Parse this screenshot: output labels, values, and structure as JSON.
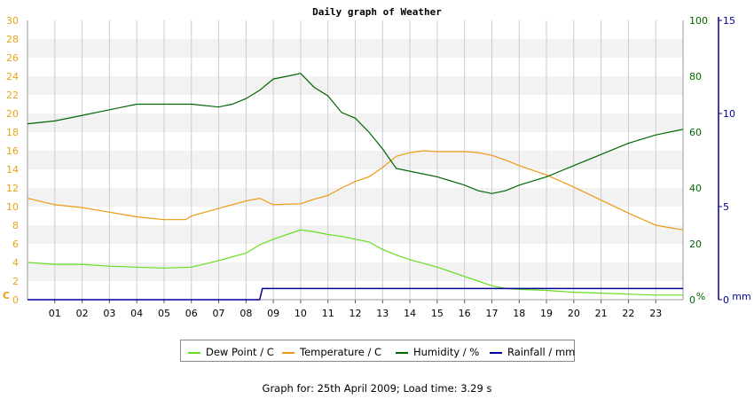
{
  "chart_data": {
    "type": "line",
    "title": "Daily graph of Weather",
    "footer": "Graph for: 25th April 2009; Load time: 3.29 s",
    "xlim": [
      0,
      24
    ],
    "x_ticks": [
      "01",
      "02",
      "03",
      "04",
      "05",
      "06",
      "07",
      "08",
      "09",
      "10",
      "11",
      "12",
      "13",
      "14",
      "15",
      "16",
      "17",
      "18",
      "19",
      "20",
      "21",
      "22",
      "23"
    ],
    "axes": {
      "left": {
        "label": "C",
        "min": 0,
        "max": 30,
        "ticks": [
          "0",
          "2",
          "4",
          "6",
          "8",
          "10",
          "12",
          "14",
          "16",
          "18",
          "20",
          "22",
          "24",
          "26",
          "28",
          "30"
        ],
        "color": "#e8a317"
      },
      "right1": {
        "label": "%",
        "min": 0,
        "max": 100,
        "ticks": [
          "0",
          "20",
          "40",
          "60",
          "80",
          "100"
        ],
        "color": "#006400"
      },
      "right2": {
        "label": "mm",
        "min": 0,
        "max": 15,
        "ticks": [
          "0",
          "5",
          "10",
          "15"
        ],
        "color": "#00008b"
      }
    },
    "series": [
      {
        "name": "Dew Point / C",
        "axis": "left",
        "color": "#66dd22",
        "points": [
          [
            0,
            4.0
          ],
          [
            1,
            3.8
          ],
          [
            2,
            3.8
          ],
          [
            3,
            3.6
          ],
          [
            4,
            3.5
          ],
          [
            5,
            3.4
          ],
          [
            6,
            3.5
          ],
          [
            7,
            4.2
          ],
          [
            8,
            5.0
          ],
          [
            8.5,
            5.9
          ],
          [
            9,
            6.5
          ],
          [
            9.5,
            7.0
          ],
          [
            10,
            7.5
          ],
          [
            10.5,
            7.3
          ],
          [
            11,
            7.0
          ],
          [
            11.5,
            6.8
          ],
          [
            12,
            6.5
          ],
          [
            12.5,
            6.2
          ],
          [
            13,
            5.4
          ],
          [
            13.5,
            4.8
          ],
          [
            14,
            4.3
          ],
          [
            14.5,
            3.9
          ],
          [
            15,
            3.5
          ],
          [
            15.5,
            3.0
          ],
          [
            16,
            2.5
          ],
          [
            16.5,
            2.0
          ],
          [
            17,
            1.5
          ],
          [
            17.5,
            1.2
          ],
          [
            18,
            1.1
          ],
          [
            19,
            1.0
          ],
          [
            20,
            0.8
          ],
          [
            21,
            0.7
          ],
          [
            22,
            0.6
          ],
          [
            23,
            0.5
          ],
          [
            24,
            0.5
          ]
        ]
      },
      {
        "name": "Temperature / C",
        "axis": "left",
        "color": "#ee9911",
        "points": [
          [
            0,
            10.9
          ],
          [
            1,
            10.2
          ],
          [
            2,
            9.9
          ],
          [
            3,
            9.4
          ],
          [
            4,
            8.9
          ],
          [
            5,
            8.6
          ],
          [
            5.8,
            8.6
          ],
          [
            6,
            9.0
          ],
          [
            7,
            9.8
          ],
          [
            8,
            10.6
          ],
          [
            8.5,
            10.9
          ],
          [
            9,
            10.2
          ],
          [
            10,
            10.3
          ],
          [
            10.5,
            10.8
          ],
          [
            11,
            11.2
          ],
          [
            11.5,
            12.0
          ],
          [
            12,
            12.7
          ],
          [
            12.5,
            13.2
          ],
          [
            13,
            14.2
          ],
          [
            13.5,
            15.4
          ],
          [
            14,
            15.8
          ],
          [
            14.5,
            16.0
          ],
          [
            15,
            15.9
          ],
          [
            16,
            15.9
          ],
          [
            16.5,
            15.8
          ],
          [
            17,
            15.5
          ],
          [
            17.5,
            15.0
          ],
          [
            18,
            14.4
          ],
          [
            19,
            13.4
          ],
          [
            20,
            12.1
          ],
          [
            21,
            10.7
          ],
          [
            22,
            9.3
          ],
          [
            23,
            8.0
          ],
          [
            24,
            7.5
          ]
        ]
      },
      {
        "name": "Humidity / %",
        "axis": "right1",
        "color": "#006600",
        "points": [
          [
            0,
            63
          ],
          [
            1,
            64
          ],
          [
            2,
            66
          ],
          [
            3,
            68
          ],
          [
            4,
            70
          ],
          [
            5,
            70
          ],
          [
            6,
            70
          ],
          [
            7,
            69
          ],
          [
            7.5,
            70
          ],
          [
            8,
            72
          ],
          [
            8.5,
            75
          ],
          [
            9,
            79
          ],
          [
            9.5,
            80
          ],
          [
            10,
            81
          ],
          [
            10.5,
            76
          ],
          [
            11,
            73
          ],
          [
            11.5,
            67
          ],
          [
            12,
            65
          ],
          [
            12.5,
            60
          ],
          [
            13,
            54
          ],
          [
            13.5,
            47
          ],
          [
            14,
            46
          ],
          [
            15,
            44
          ],
          [
            16,
            41
          ],
          [
            16.5,
            39
          ],
          [
            17,
            38
          ],
          [
            17.5,
            39
          ],
          [
            18,
            41
          ],
          [
            19,
            44
          ],
          [
            20,
            48
          ],
          [
            21,
            52
          ],
          [
            22,
            56
          ],
          [
            23,
            59
          ],
          [
            24,
            61
          ]
        ]
      },
      {
        "name": "Rainfall / mm",
        "axis": "right2",
        "color": "#000099",
        "points": [
          [
            0,
            0
          ],
          [
            8.5,
            0
          ],
          [
            8.6,
            0.6
          ],
          [
            24,
            0.6
          ]
        ]
      }
    ],
    "legend": [
      "Dew Point / C",
      "Temperature / C",
      "Humidity / %",
      "Rainfall / mm"
    ]
  }
}
